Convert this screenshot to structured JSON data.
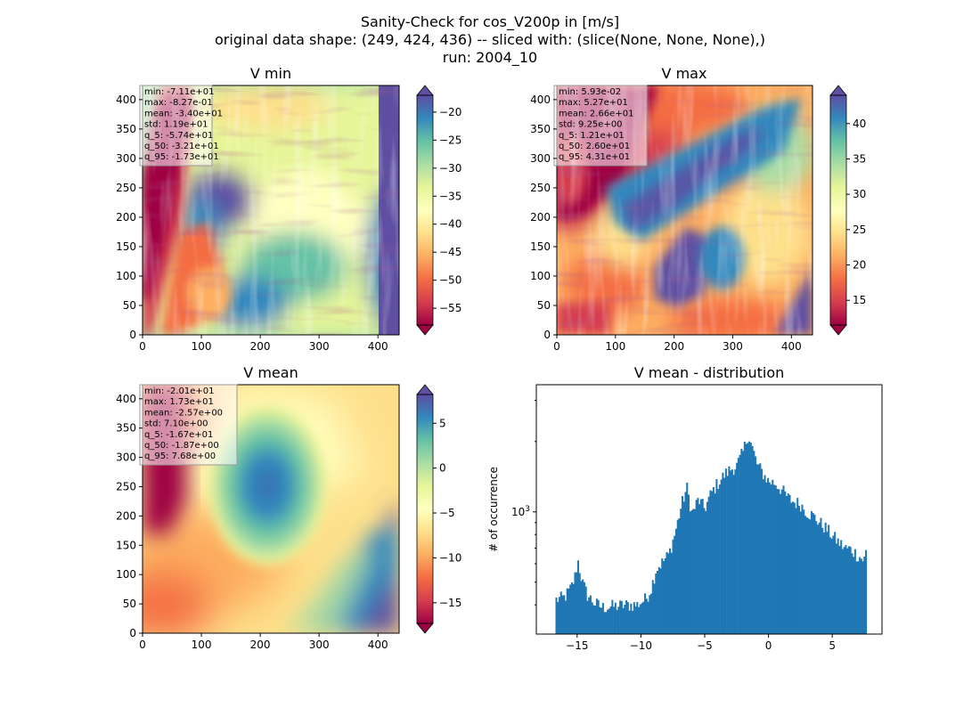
{
  "figure": {
    "title_lines": [
      "Sanity-Check for cos_V200p in [m/s]",
      "original data shape: (249, 424, 436) -- sliced with: (slice(None, None, None),)",
      "run: 2004_10"
    ]
  },
  "chart_data": [
    {
      "type": "heatmap",
      "id": "vmin",
      "title": "V min",
      "xlim": [
        0,
        436
      ],
      "ylim": [
        0,
        424
      ],
      "xticks": [
        0,
        100,
        200,
        300,
        400
      ],
      "yticks": [
        0,
        50,
        100,
        150,
        200,
        250,
        300,
        350,
        400
      ],
      "colormap": "Spectral",
      "colorbar": {
        "range": [
          -58,
          -17
        ],
        "ticks": [
          -55,
          -50,
          -45,
          -40,
          -35,
          -30,
          -25,
          -20
        ],
        "tick_labels": [
          "−55",
          "−50",
          "−45",
          "−40",
          "−35",
          "−30",
          "−25",
          "−20"
        ]
      },
      "stats": [
        "min: -7.11e+01",
        "max: -8.27e-01",
        "mean: -3.40e+01",
        "std: 1.19e+01",
        "q_5: -5.74e+01",
        "q_50: -3.21e+01",
        "q_95: -1.73e+01"
      ]
    },
    {
      "type": "heatmap",
      "id": "vmax",
      "title": "V max",
      "xlim": [
        0,
        436
      ],
      "ylim": [
        0,
        424
      ],
      "xticks": [
        0,
        100,
        200,
        300,
        400
      ],
      "yticks": [
        0,
        50,
        100,
        150,
        200,
        250,
        300,
        350,
        400
      ],
      "colormap": "Spectral",
      "colorbar": {
        "range": [
          11.5,
          44
        ],
        "ticks": [
          15,
          20,
          25,
          30,
          35,
          40
        ],
        "tick_labels": [
          "15",
          "20",
          "25",
          "30",
          "35",
          "40"
        ]
      },
      "stats": [
        "min: 5.93e-02",
        "max: 5.27e+01",
        "mean: 2.66e+01",
        "std: 9.25e+00",
        "q_5: 1.21e+01",
        "q_50: 2.60e+01",
        "q_95: 4.31e+01"
      ]
    },
    {
      "type": "heatmap",
      "id": "vmean",
      "title": "V mean",
      "xlim": [
        0,
        436
      ],
      "ylim": [
        0,
        424
      ],
      "xticks": [
        0,
        100,
        200,
        300,
        400
      ],
      "yticks": [
        0,
        50,
        100,
        150,
        200,
        250,
        300,
        350,
        400
      ],
      "colormap": "Spectral",
      "colorbar": {
        "range": [
          -17.3,
          8.2
        ],
        "ticks": [
          -15,
          -10,
          -5,
          0,
          5
        ],
        "tick_labels": [
          "−15",
          "−10",
          "−5",
          "0",
          "5"
        ]
      },
      "stats": [
        "min: -2.01e+01",
        "max: 1.73e+01",
        "mean: -2.57e+00",
        "std: 7.10e+00",
        "q_5: -1.67e+01",
        "q_50: -1.87e+00",
        "q_95: 7.68e+00"
      ]
    },
    {
      "type": "bar",
      "id": "vmean-dist",
      "title": "V mean - distribution",
      "ylabel": "# of occurrence",
      "yscale": "log",
      "xlim": [
        -18.2,
        8.9
      ],
      "ylim": [
        300,
        3500
      ],
      "xticks": [
        -15,
        -10,
        -5,
        0,
        5
      ],
      "xtick_labels": [
        "−15",
        "−10",
        "−5",
        "0",
        "5"
      ],
      "yticks_major": [
        1000
      ],
      "ytick_labels": [
        "10^3"
      ],
      "bin_range": [
        -16.7,
        7.7
      ],
      "color": "#1f77b4",
      "anchors": [
        [
          -16.7,
          420
        ],
        [
          -16.0,
          430
        ],
        [
          -15.5,
          470
        ],
        [
          -15.2,
          520
        ],
        [
          -14.95,
          620
        ],
        [
          -14.6,
          500
        ],
        [
          -14.2,
          440
        ],
        [
          -13.6,
          405
        ],
        [
          -13.0,
          390
        ],
        [
          -12.0,
          395
        ],
        [
          -11.0,
          400
        ],
        [
          -10.3,
          400
        ],
        [
          -9.6,
          425
        ],
        [
          -9.2,
          470
        ],
        [
          -8.8,
          570
        ],
        [
          -8.3,
          610
        ],
        [
          -7.8,
          660
        ],
        [
          -7.3,
          820
        ],
        [
          -6.8,
          1080
        ],
        [
          -6.4,
          1270
        ],
        [
          -6.0,
          980
        ],
        [
          -5.5,
          1130
        ],
        [
          -5.0,
          1030
        ],
        [
          -4.5,
          1200
        ],
        [
          -4.0,
          1320
        ],
        [
          -3.5,
          1430
        ],
        [
          -3.0,
          1520
        ],
        [
          -2.5,
          1570
        ],
        [
          -2.0,
          1800
        ],
        [
          -1.6,
          2150
        ],
        [
          -1.3,
          1900
        ],
        [
          -0.9,
          1600
        ],
        [
          -0.4,
          1450
        ],
        [
          0.0,
          1350
        ],
        [
          0.5,
          1330
        ],
        [
          1.0,
          1250
        ],
        [
          1.5,
          1150
        ],
        [
          2.0,
          1100
        ],
        [
          2.5,
          1080
        ],
        [
          3.0,
          1000
        ],
        [
          3.5,
          960
        ],
        [
          4.0,
          900
        ],
        [
          4.5,
          850
        ],
        [
          5.0,
          790
        ],
        [
          5.5,
          740
        ],
        [
          6.0,
          700
        ],
        [
          6.5,
          690
        ],
        [
          7.0,
          650
        ],
        [
          7.5,
          620
        ],
        [
          7.7,
          700
        ]
      ]
    }
  ]
}
